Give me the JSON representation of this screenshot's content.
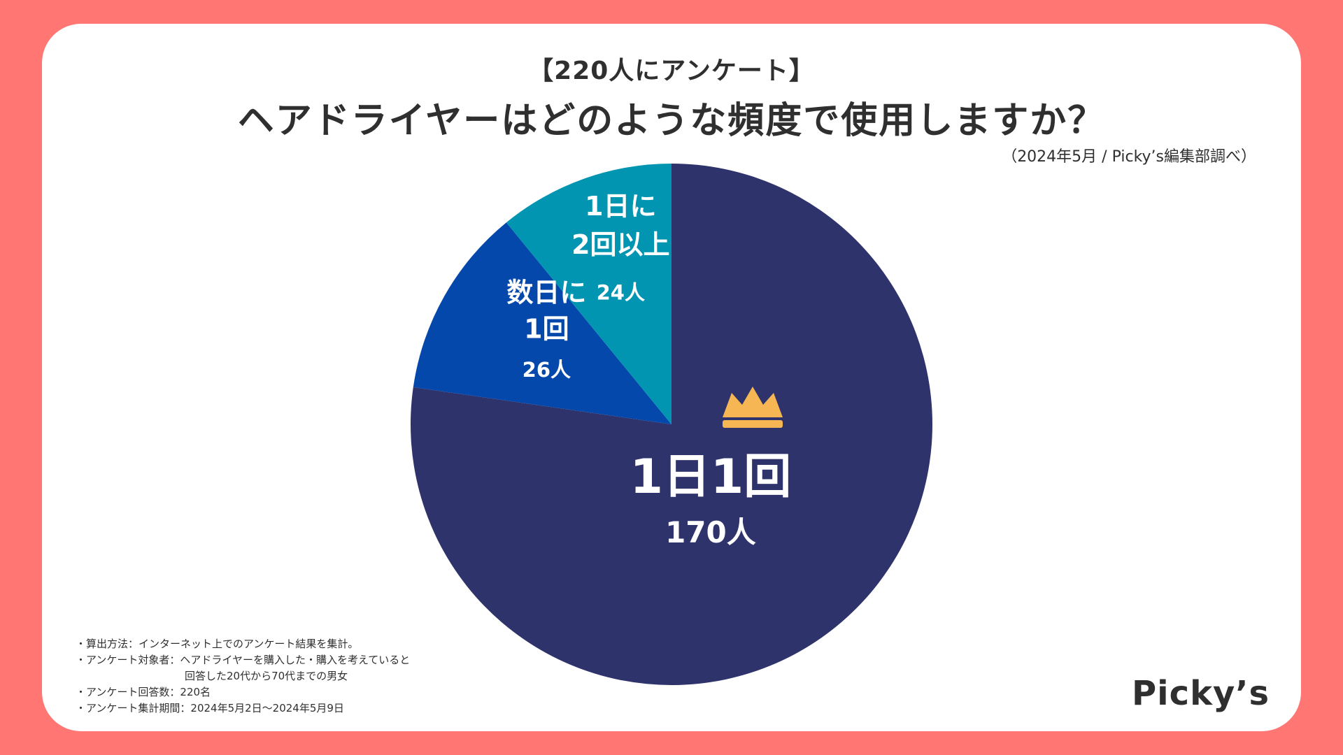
{
  "header": {
    "kicker": "【220人にアンケート】",
    "title": "ヘアドライヤーはどのような頻度で使用しますか？",
    "source": "（2024年5月 / Picky’s編集部調べ）"
  },
  "chart_data": {
    "type": "pie",
    "title": "ヘアドライヤーはどのような頻度で使用しますか？",
    "total": 220,
    "slices": [
      {
        "label_lines": [
          "1日1回"
        ],
        "value": 170,
        "value_label": "170人",
        "color": "#2F336B"
      },
      {
        "label_lines": [
          "数日に",
          "1回"
        ],
        "value": 26,
        "value_label": "26人",
        "color": "#0448AB"
      },
      {
        "label_lines": [
          "1日に",
          "2回以上"
        ],
        "value": 24,
        "value_label": "24人",
        "color": "#0295B1"
      }
    ],
    "highlight_icon": "crown-icon",
    "highlight_color": "#F6B654"
  },
  "notes": {
    "items": [
      "・算出方法：インターネット上でのアンケート結果を集計。",
      "・アンケート対象者：ヘアドライヤーを購入した・購入を考えていると",
      "回答した20代から70代までの男女",
      "・アンケート回答数：220名",
      "・アンケート集計期間：2024年5月2日〜2024年5月9日"
    ]
  },
  "brand": {
    "logo": "Picky’s"
  }
}
